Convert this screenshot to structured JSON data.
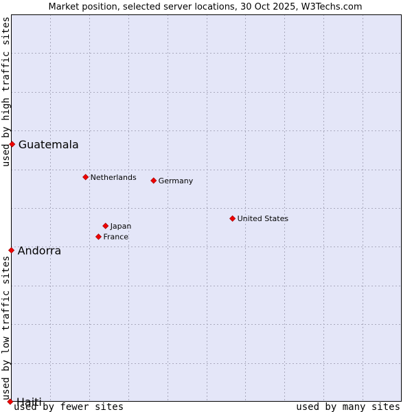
{
  "chart_data": {
    "type": "scatter",
    "title": "Market position, selected server locations, 30 Oct 2025, W3Techs.com",
    "xlabel_left": "used by fewer sites",
    "xlabel_right": "used by many sites",
    "ylabel_top": "used by high traffic sites",
    "ylabel_bottom": "used by low traffic sites",
    "xlim": [
      0,
      100
    ],
    "ylim": [
      0,
      100
    ],
    "grid": true,
    "plot_background": "#e4e6f8",
    "point_color": "#ee0000",
    "points": [
      {
        "name": "Guatemala",
        "x": 0.3,
        "y": 66.5,
        "highlight": true
      },
      {
        "name": "Netherlands",
        "x": 19.1,
        "y": 58.0,
        "highlight": false
      },
      {
        "name": "Germany",
        "x": 36.5,
        "y": 57.1,
        "highlight": false
      },
      {
        "name": "United States",
        "x": 56.7,
        "y": 47.3,
        "highlight": false
      },
      {
        "name": "Japan",
        "x": 24.2,
        "y": 45.4,
        "highlight": false
      },
      {
        "name": "France",
        "x": 22.4,
        "y": 42.6,
        "highlight": false
      },
      {
        "name": "Andorra",
        "x": 0.1,
        "y": 39.1,
        "highlight": true
      },
      {
        "name": "Haiti",
        "x": -0.2,
        "y": 0.0,
        "highlight": true
      }
    ]
  }
}
